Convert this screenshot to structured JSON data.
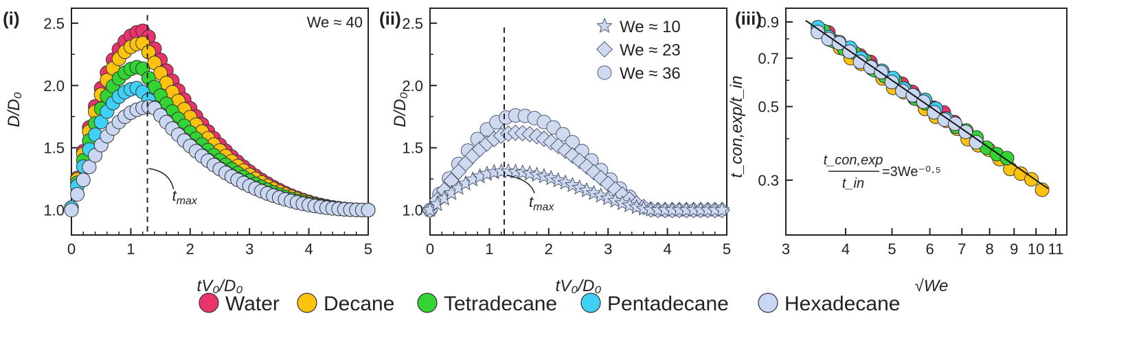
{
  "legend": {
    "items": [
      {
        "label": "Water",
        "color": "#e8336b"
      },
      {
        "label": "Decane",
        "color": "#ffc20e"
      },
      {
        "label": "Tetradecane",
        "color": "#34d334"
      },
      {
        "label": "Pentadecane",
        "color": "#3fd0f5"
      },
      {
        "label": "Hexadecane",
        "color": "#c9d7f2"
      }
    ]
  },
  "chart_data": [
    {
      "panel": "(i)",
      "type": "scatter",
      "xlabel": "tV₀/D₀",
      "ylabel": "D/D₀",
      "xlim": [
        0,
        5
      ],
      "ylim": [
        0.8,
        2.62
      ],
      "xticks": [
        "0",
        "1",
        "2",
        "3",
        "4",
        "5"
      ],
      "yticks": [
        "1.0",
        "1.5",
        "2.0",
        "2.5"
      ],
      "annotation": "We ≈ 40",
      "tmax_label": "t_max",
      "tmax_x": 1.28,
      "series": [
        {
          "name": "Water",
          "color": "#e8336b",
          "peak": 2.44,
          "t_peak": 1.25,
          "start": 1.02
        },
        {
          "name": "Decane",
          "color": "#ffc20e",
          "peak": 2.34,
          "t_peak": 1.22,
          "start": 1.02
        },
        {
          "name": "Tetradecane",
          "color": "#34d334",
          "peak": 2.15,
          "t_peak": 1.18,
          "start": 1.02
        },
        {
          "name": "Pentadecane",
          "color": "#3fd0f5",
          "peak": 1.98,
          "t_peak": 1.15,
          "start": 1.02
        },
        {
          "name": "Hexadecane",
          "color": "#c9d7f2",
          "peak": 1.83,
          "t_peak": 1.38,
          "start": 1.0
        }
      ]
    },
    {
      "panel": "(ii)",
      "type": "scatter",
      "xlabel": "tV₀/D₀",
      "ylabel": "D/D₀",
      "xlim": [
        0,
        5
      ],
      "ylim": [
        0.8,
        2.62
      ],
      "xticks": [
        "0",
        "1",
        "2",
        "3",
        "4",
        "5"
      ],
      "yticks": [
        "1.0",
        "1.5",
        "2.0",
        "2.5"
      ],
      "tmax_label": "t_max",
      "tmax_x": 1.25,
      "series": [
        {
          "name": "We ≈ 10",
          "marker": "star",
          "peak": 1.31,
          "t_peak": 1.25
        },
        {
          "name": "We ≈ 23",
          "marker": "diamond",
          "peak": 1.62,
          "t_peak": 1.45
        },
        {
          "name": "We ≈ 36",
          "marker": "circle",
          "peak": 1.76,
          "t_peak": 1.48
        }
      ]
    },
    {
      "panel": "(iii)",
      "type": "scatter",
      "xscale": "log",
      "yscale": "log",
      "xlabel": "√We",
      "ylabel": "t_con,exp/t_in",
      "xlim": [
        3.0,
        11.6
      ],
      "ylim": [
        0.205,
        0.99
      ],
      "xticks": [
        "3",
        "4",
        "5",
        "6",
        "7",
        "8",
        "9",
        "10",
        "11"
      ],
      "yticks": [
        "0.3",
        "0.5",
        "0.7",
        "0.9"
      ],
      "fit": {
        "prefactor": 3,
        "exponent": -0.5,
        "label_num": "t_con,exp",
        "label_den": "t_in",
        "label_rhs": "=3We⁻⁰·⁵"
      },
      "series": [
        {
          "name": "Water",
          "color": "#e8336b",
          "x_range": [
            3.5,
            7.1
          ]
        },
        {
          "name": "Decane",
          "color": "#ffc20e",
          "x_range": [
            3.7,
            10.3
          ]
        },
        {
          "name": "Tetradecane",
          "color": "#34d334",
          "x_range": [
            3.6,
            8.7
          ]
        },
        {
          "name": "Pentadecane",
          "color": "#3fd0f5",
          "x_range": [
            3.5,
            6.5
          ]
        },
        {
          "name": "Hexadecane",
          "color": "#c9d7f2",
          "x_range": [
            3.5,
            7.5
          ]
        }
      ]
    }
  ]
}
